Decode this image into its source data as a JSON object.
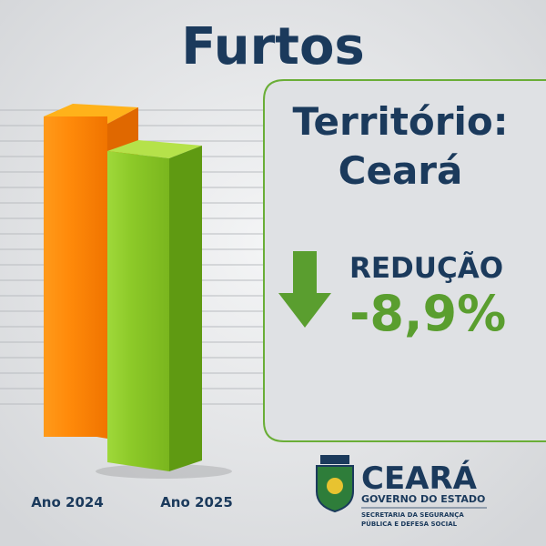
{
  "header": {
    "title": "Furtos"
  },
  "bars": {
    "labels": [
      "Ano 2024",
      "Ano 2025"
    ]
  },
  "panel": {
    "territory_label": "Território:",
    "territory": "Ceará",
    "change_label": "REDUÇÃO",
    "change": "-8,9%"
  },
  "logo": {
    "name": "CEARÁ",
    "government": "GOVERNO DO ESTADO",
    "secretariat_line1": "SECRETARIA DA SEGURANÇA",
    "secretariat_line2": "PÚBLICA E DEFESA SOCIAL"
  }
}
